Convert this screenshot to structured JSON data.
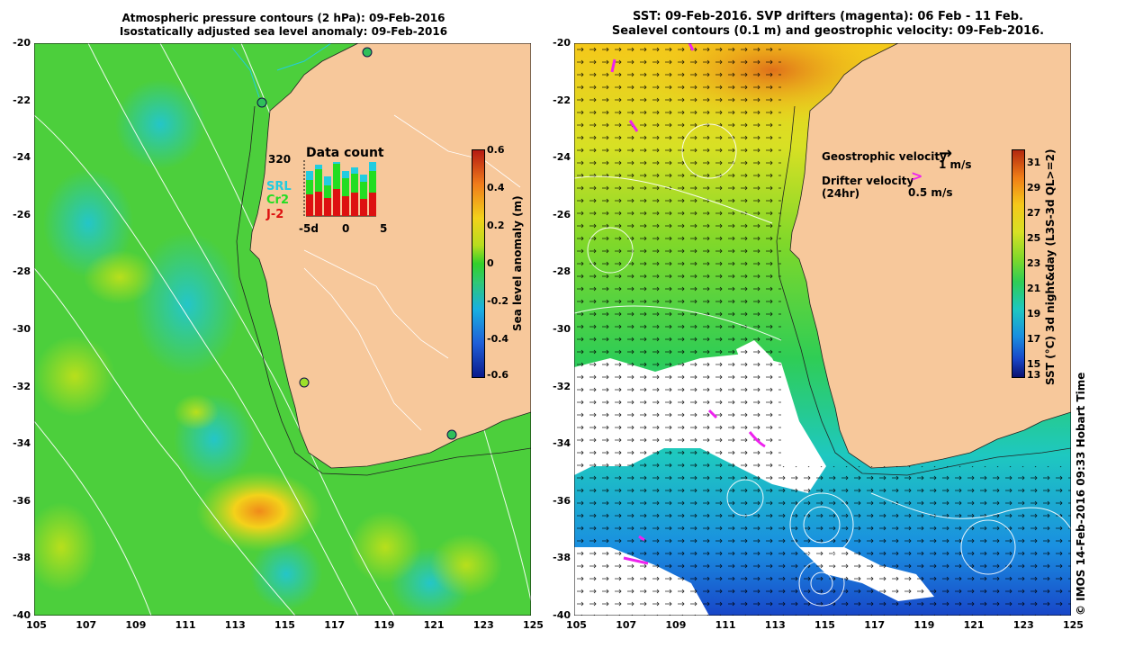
{
  "left_panel": {
    "title_line1": "Atmospheric pressure contours (2 hPa): 09-Feb-2016",
    "title_line2": "Isostatically adjusted sea level anomaly: 09-Feb-2016",
    "colorbar": {
      "label": "Sea level anomaly (m)",
      "ticks": [
        "0.6",
        "0.4",
        "0.2",
        "0",
        "-0.2",
        "-0.4",
        "-0.6"
      ],
      "colors": [
        "#0a1a8c",
        "#1f5fd8",
        "#19b0e0",
        "#2fc873",
        "#32d02a",
        "#b7dd1e",
        "#f3d21a",
        "#f07c1a",
        "#b51a12"
      ]
    },
    "data_count": {
      "title": "Data count",
      "max_label": "320",
      "series": [
        {
          "name": "SRL",
          "color": "#22cce0"
        },
        {
          "name": "Cr2",
          "color": "#22dd22"
        },
        {
          "name": "J-2",
          "color": "#dd1111"
        }
      ],
      "x_ticks": [
        "-5d",
        "0",
        "5"
      ]
    }
  },
  "right_panel": {
    "title_line1": "SST: 09-Feb-2016. SVP drifters (magenta): 06 Feb - 11 Feb.",
    "title_line2": "Sealevel contours (0.1 m) and geostrophic velocity: 09-Feb-2016.",
    "legend": {
      "geo_label": "Geostrophic velocity",
      "geo_value": "1 m/s",
      "drifter_label": "Drifter velocity",
      "drifter_sub": "(24hr)",
      "drifter_value": "0.5 m/s"
    },
    "colorbar": {
      "label": "SST (°C) 3d night&day (L3S-3d QL>=2)",
      "ticks": [
        "31",
        "29",
        "27",
        "25",
        "23",
        "21",
        "19",
        "17",
        "15",
        "13"
      ],
      "colors": [
        "#0a1070",
        "#1846c8",
        "#1a8fe0",
        "#1ec8c0",
        "#2fcd55",
        "#7fd82a",
        "#d8e024",
        "#f5c81a",
        "#f07d16",
        "#b3280f"
      ]
    }
  },
  "axes": {
    "x_ticks": [
      "105",
      "107",
      "109",
      "111",
      "113",
      "115",
      "117",
      "119",
      "121",
      "123",
      "125"
    ],
    "y_ticks": [
      "-20",
      "-22",
      "-24",
      "-26",
      "-28",
      "-30",
      "-32",
      "-34",
      "-36",
      "-38",
      "-40"
    ]
  },
  "credit": "© IMOS 14-Feb-2016 09:33 Hobart Time",
  "colors": {
    "land": "#f7c89b",
    "ocean_green": "#4ccf3c",
    "cloud": "#ffffff",
    "drifter": "#ee22ee"
  }
}
